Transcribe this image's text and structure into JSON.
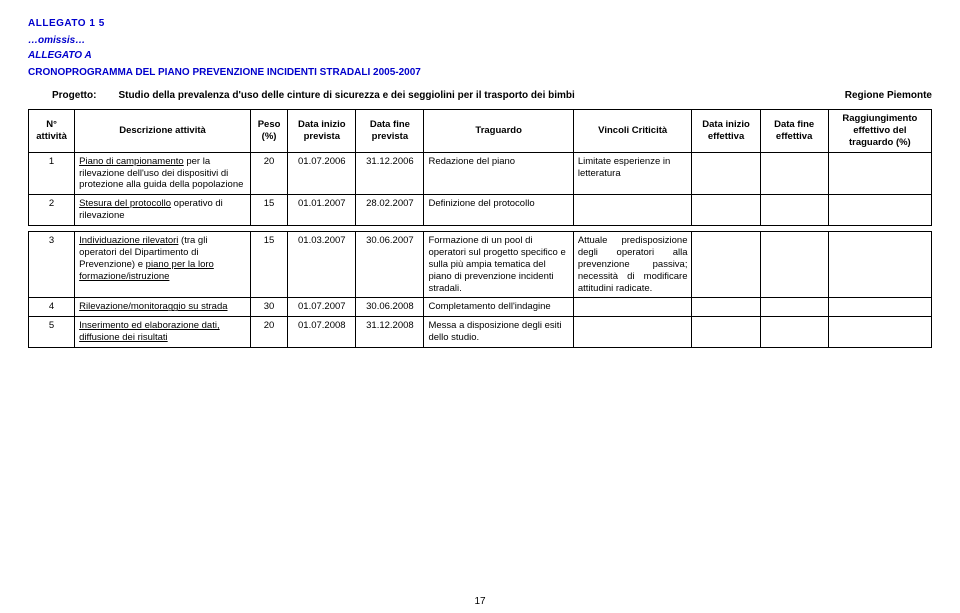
{
  "header": {
    "allegato15": "ALLEGATO 1 5",
    "omissis": "…omissis…",
    "allegatoA": "ALLEGATO A",
    "crono": "CRONOPROGRAMMA DEL PIANO PREVENZIONE INCIDENTI STRADALI 2005-2007"
  },
  "progetto": {
    "label": "Progetto:",
    "text": "Studio della prevalenza d'uso delle cinture di sicurezza e dei seggiolini per il trasporto dei bimbi",
    "regione": "Regione Piemonte"
  },
  "columns": {
    "n": "N° attività",
    "desc": "Descrizione attività",
    "peso": "Peso (%)",
    "dinizio": "Data inizio prevista",
    "dfine": "Data fine prevista",
    "traguardo": "Traguardo",
    "vincoli": "Vincoli Criticità",
    "dinizioeff": "Data inizio effettiva",
    "dfineeff": "Data fine effettiva",
    "ragg": "Raggiungimento effettivo del traguardo (%)"
  },
  "rows": [
    {
      "n": "1",
      "desc_u": "Piano di campionamento",
      "desc_rest": " per la rilevazione dell'uso dei dispositivi di protezione alla guida della popolazione",
      "peso": "20",
      "di": "01.07.2006",
      "df": "31.12.2006",
      "trag": "Redazione del piano",
      "vinc": "Limitate esperienze in letteratura"
    },
    {
      "n": "2",
      "desc_u": "Stesura del protocollo",
      "desc_rest": " operativo di rilevazione",
      "peso": "15",
      "di": "01.01.2007",
      "df": "28.02.2007",
      "trag": "Definizione del protocollo",
      "vinc": ""
    },
    {
      "n": "3",
      "desc_u": "Individuazione rilevatori",
      "desc_rest": " (tra gli operatori del Dipartimento di Prevenzione) e ",
      "desc_u2": "piano per la loro formazione/istruzione",
      "peso": "15",
      "di": "01.03.2007",
      "df": "30.06.2007",
      "trag": "Formazione di un pool di operatori sul progetto specifico e sulla più ampia tematica del piano di prevenzione incidenti stradali.",
      "vinc": "Attuale predisposizione degli operatori alla prevenzione passiva; necessità di modificare attitudini radicate."
    },
    {
      "n": "4",
      "desc_u": "Rilevazione/monitoraggio su strada",
      "desc_rest": "",
      "peso": "30",
      "di": "01.07.2007",
      "df": "30.06.2008",
      "trag": "Completamento dell'indagine",
      "vinc": ""
    },
    {
      "n": "5",
      "desc_u": "Inserimento ed elaborazione dati, diffusione dei risultati",
      "desc_rest": "",
      "peso": "20",
      "di": "01.07.2008",
      "df": "31.12.2008",
      "trag": "Messa a disposizione degli esiti dello studio.",
      "vinc": ""
    }
  ],
  "pagenum": "17"
}
